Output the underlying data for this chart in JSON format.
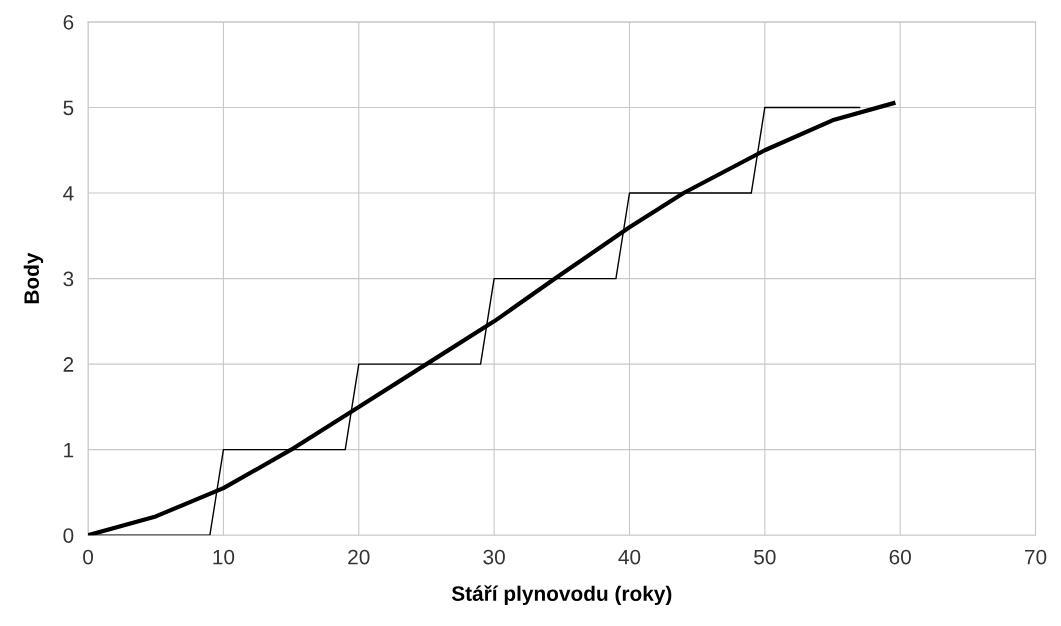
{
  "chart_data": {
    "type": "line",
    "xlabel": "Stáří plynovodu (roky)",
    "ylabel": "Body",
    "xlim": [
      0,
      70
    ],
    "xticks": [
      0,
      10,
      20,
      30,
      40,
      50,
      60,
      70
    ],
    "ylim": [
      0,
      6
    ],
    "yticks": [
      0,
      1,
      2,
      3,
      4,
      5,
      6
    ],
    "grid": true,
    "series": [
      {
        "color": "#000000",
        "line_style": "solid",
        "x": [
          0,
          9,
          10,
          19,
          20,
          29,
          30,
          39,
          40,
          49,
          50,
          57
        ],
        "values": [
          0,
          0,
          1,
          1,
          2,
          2,
          3,
          3,
          4,
          4,
          5,
          5
        ]
      },
      {
        "color": "#000000",
        "line_style": "solid",
        "x": [
          0,
          5,
          10,
          15,
          20,
          25,
          30,
          34.5,
          40,
          44,
          50,
          55,
          59.5
        ],
        "values": [
          0,
          0.22,
          0.55,
          1.0,
          1.5,
          2.0,
          2.5,
          3.0,
          3.6,
          4.0,
          4.5,
          4.85,
          5.05
        ]
      }
    ]
  }
}
